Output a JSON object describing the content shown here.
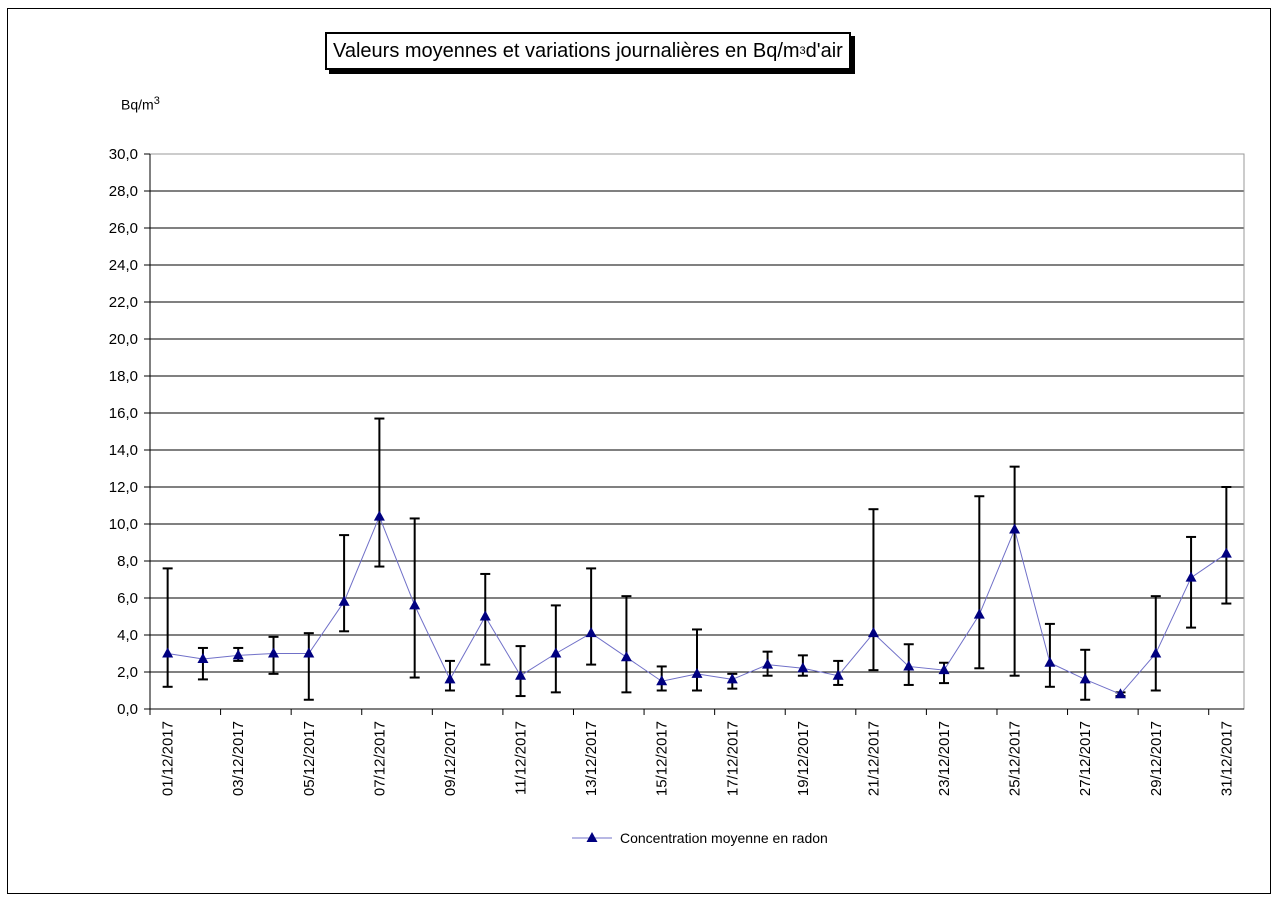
{
  "chart_data": {
    "type": "line",
    "title_main": "Valeurs moyennes et variations journalières en Bq/m",
    "title_sup": "3",
    "title_tail": " d'air",
    "ylabel_main": "Bq/m",
    "ylabel_sup": "3",
    "ylim": [
      0,
      30
    ],
    "yticks": [
      "0,0",
      "2,0",
      "4,0",
      "6,0",
      "8,0",
      "10,0",
      "12,0",
      "14,0",
      "16,0",
      "18,0",
      "20,0",
      "22,0",
      "24,0",
      "26,0",
      "28,0",
      "30,0"
    ],
    "categories": [
      "01/12/2017",
      "02/12/2017",
      "03/12/2017",
      "04/12/2017",
      "05/12/2017",
      "06/12/2017",
      "07/12/2017",
      "08/12/2017",
      "09/12/2017",
      "10/12/2017",
      "11/12/2017",
      "12/12/2017",
      "13/12/2017",
      "14/12/2017",
      "15/12/2017",
      "16/12/2017",
      "17/12/2017",
      "18/12/2017",
      "19/12/2017",
      "20/12/2017",
      "21/12/2017",
      "22/12/2017",
      "23/12/2017",
      "24/12/2017",
      "25/12/2017",
      "26/12/2017",
      "27/12/2017",
      "28/12/2017",
      "29/12/2017",
      "30/12/2017",
      "31/12/2017"
    ],
    "x_tick_labels": [
      "01/12/2017",
      "",
      "03/12/2017",
      "",
      "05/12/2017",
      "",
      "07/12/2017",
      "",
      "09/12/2017",
      "",
      "11/12/2017",
      "",
      "13/12/2017",
      "",
      "15/12/2017",
      "",
      "17/12/2017",
      "",
      "19/12/2017",
      "",
      "21/12/2017",
      "",
      "23/12/2017",
      "",
      "25/12/2017",
      "",
      "27/12/2017",
      "",
      "29/12/2017",
      "",
      "31/12/2017"
    ],
    "series": [
      {
        "name": "Concentration moyenne en radon",
        "color": "#000080",
        "line_color": "#7070c8",
        "values": [
          3.0,
          2.7,
          2.9,
          3.0,
          3.0,
          5.8,
          10.4,
          5.6,
          1.6,
          5.0,
          1.8,
          3.0,
          4.1,
          2.8,
          1.5,
          1.9,
          1.6,
          2.4,
          2.2,
          1.8,
          4.1,
          2.3,
          2.1,
          5.1,
          9.7,
          2.5,
          1.6,
          0.8,
          3.0,
          7.1,
          8.4
        ],
        "err_high": [
          7.6,
          3.3,
          3.3,
          3.9,
          4.1,
          9.4,
          15.7,
          10.3,
          2.6,
          7.3,
          3.4,
          5.6,
          7.6,
          6.1,
          2.3,
          4.3,
          1.9,
          3.1,
          2.9,
          2.6,
          10.8,
          3.5,
          2.5,
          11.5,
          13.1,
          4.6,
          3.2,
          0.9,
          6.1,
          9.3,
          12.0
        ],
        "err_low": [
          1.2,
          1.6,
          2.6,
          1.9,
          0.5,
          4.2,
          7.7,
          1.7,
          1.0,
          2.4,
          0.7,
          0.9,
          2.4,
          0.9,
          1.0,
          1.0,
          1.1,
          1.8,
          1.8,
          1.3,
          2.1,
          1.3,
          1.4,
          2.2,
          1.8,
          1.2,
          0.5,
          0.7,
          1.0,
          4.4,
          5.7
        ]
      }
    ],
    "legend": "Concentration moyenne en radon",
    "legend_position": "bottom-center",
    "grid": true
  }
}
